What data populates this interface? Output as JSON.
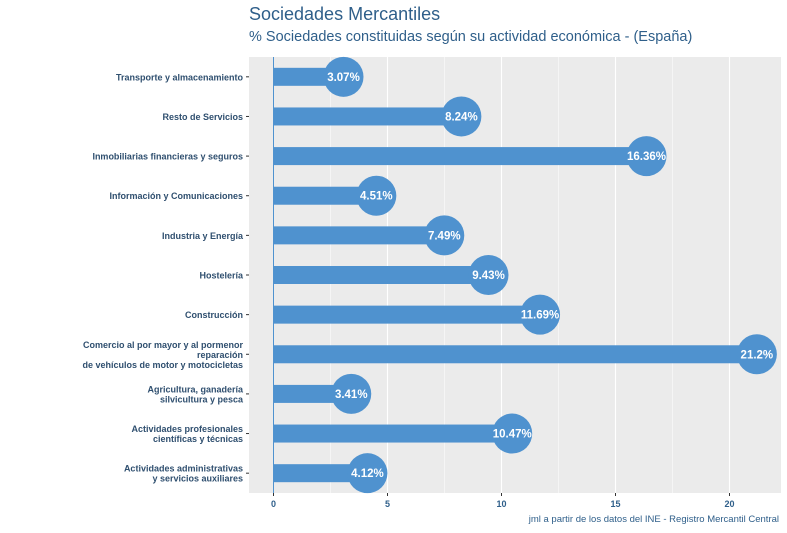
{
  "chart_data": {
    "type": "bar",
    "orientation": "horizontal",
    "title": "Sociedades Mercantiles",
    "subtitle": "% Sociedades constituidas según su actividad económica - (España)",
    "caption": "jml a partir de los datos del INE - Registro Mercantil Central",
    "xlabel": "",
    "ylabel": "",
    "xlim": [
      0,
      22
    ],
    "x_ticks": [
      0,
      5,
      10,
      15,
      20
    ],
    "x_tick_labels": [
      "0",
      "5",
      "10",
      "15",
      "20"
    ],
    "grid": true,
    "categories": [
      [
        "Transporte y almacenamiento"
      ],
      [
        "Resto de Servicios"
      ],
      [
        "Inmobiliarias financieras y seguros"
      ],
      [
        "Información y Comunicaciones"
      ],
      [
        "Industria y Energía"
      ],
      [
        "Hostelería"
      ],
      [
        "Construcción"
      ],
      [
        "Comercio al por mayor y al pormenor",
        "reparación",
        "de vehículos de motor y motocicletas"
      ],
      [
        "Agricultura, ganadería",
        "silvicultura y pesca"
      ],
      [
        "Actividades profesionales",
        "científicas y técnicas"
      ],
      [
        "Actividades administrativas",
        "y servicios auxiliares"
      ]
    ],
    "values": [
      3.07,
      8.24,
      16.36,
      4.51,
      7.49,
      9.43,
      11.69,
      21.2,
      3.41,
      10.47,
      4.12
    ],
    "value_labels": [
      "3.07%",
      "8.24%",
      "16.36%",
      "4.51%",
      "7.49%",
      "9.43%",
      "11.69%",
      "21.2%",
      "3.41%",
      "10.47%",
      "4.12%"
    ],
    "colors": {
      "bar": "#4f92cf",
      "panel": "#ebebeb",
      "grid": "#ffffff",
      "axis_line": "#4f92cf",
      "text": "#2f5f8a"
    }
  }
}
